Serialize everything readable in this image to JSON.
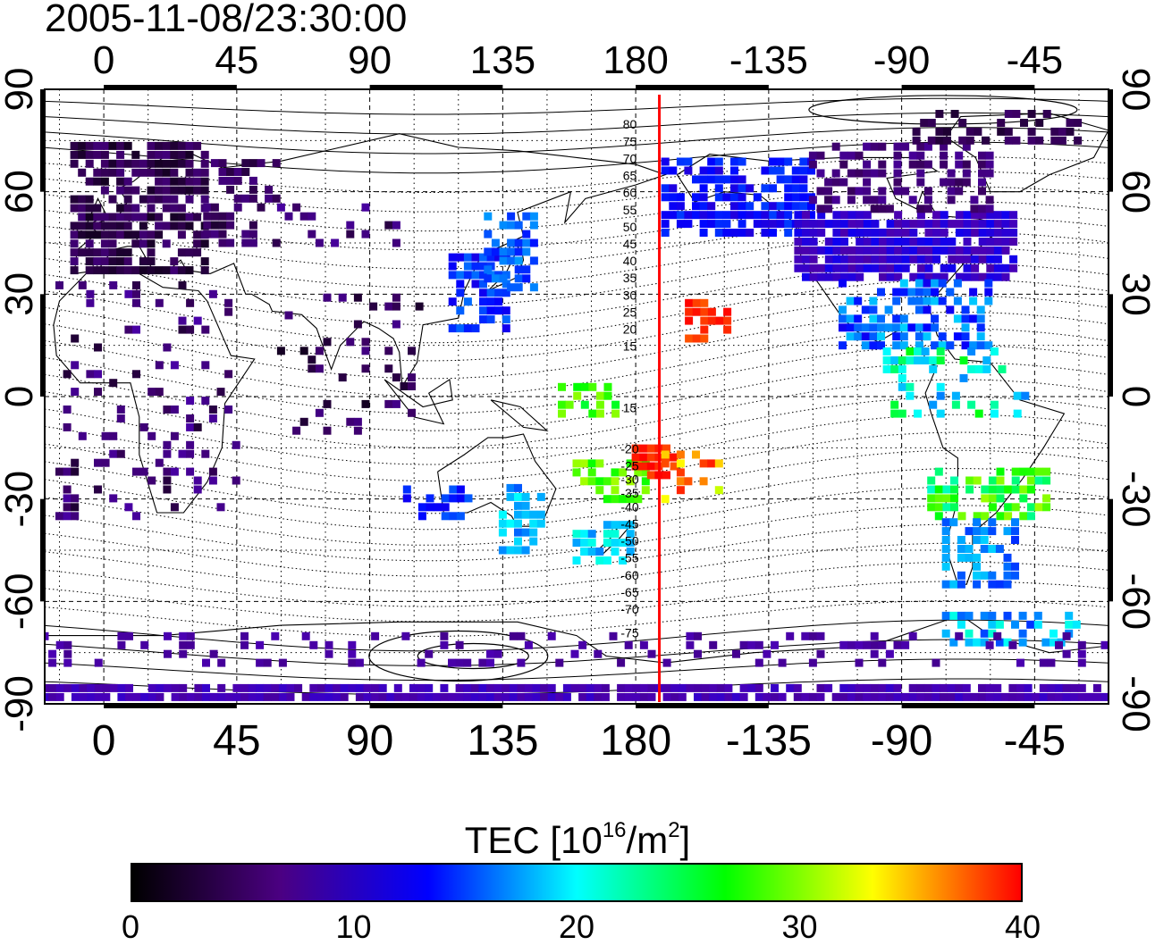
{
  "title": "2005-11-08/23:30:00",
  "lon_ticks_top": [
    "0",
    "45",
    "90",
    "135",
    "180",
    "-135",
    "-90",
    "-45"
  ],
  "lon_ticks_bottom": [
    "0",
    "45",
    "90",
    "135",
    "180",
    "-135",
    "-90",
    "-45"
  ],
  "lat_ticks": [
    "90",
    "60",
    "30",
    "0",
    "-30",
    "-60",
    "-90"
  ],
  "contour_labels": [
    "80",
    "75",
    "70",
    "65",
    "60",
    "55",
    "50",
    "45",
    "40",
    "35",
    "30",
    "25",
    "20",
    "15",
    "15",
    "-20",
    "-25",
    "-30",
    "-35",
    "-40",
    "-45",
    "-50",
    "-55",
    "-60",
    "-65",
    "-70",
    "-75"
  ],
  "colorbar": {
    "title_main": "TEC  [10",
    "title_sup1": "16",
    "title_mid": "/m",
    "title_sup2": "2",
    "title_end": "]",
    "ticks": [
      "0",
      "10",
      "20",
      "30",
      "40"
    ],
    "colors": [
      "#000000",
      "#4b0082",
      "#0000ff",
      "#00ffff",
      "#00ff00",
      "#ffff00",
      "#ff0000"
    ]
  },
  "map": {
    "projection": "equirectangular, centered on 180",
    "lon_range": [
      -20,
      340
    ],
    "lat_range": [
      -90,
      90
    ],
    "marker_line_lon": 188,
    "marker_line_color": "#ff0000"
  }
}
